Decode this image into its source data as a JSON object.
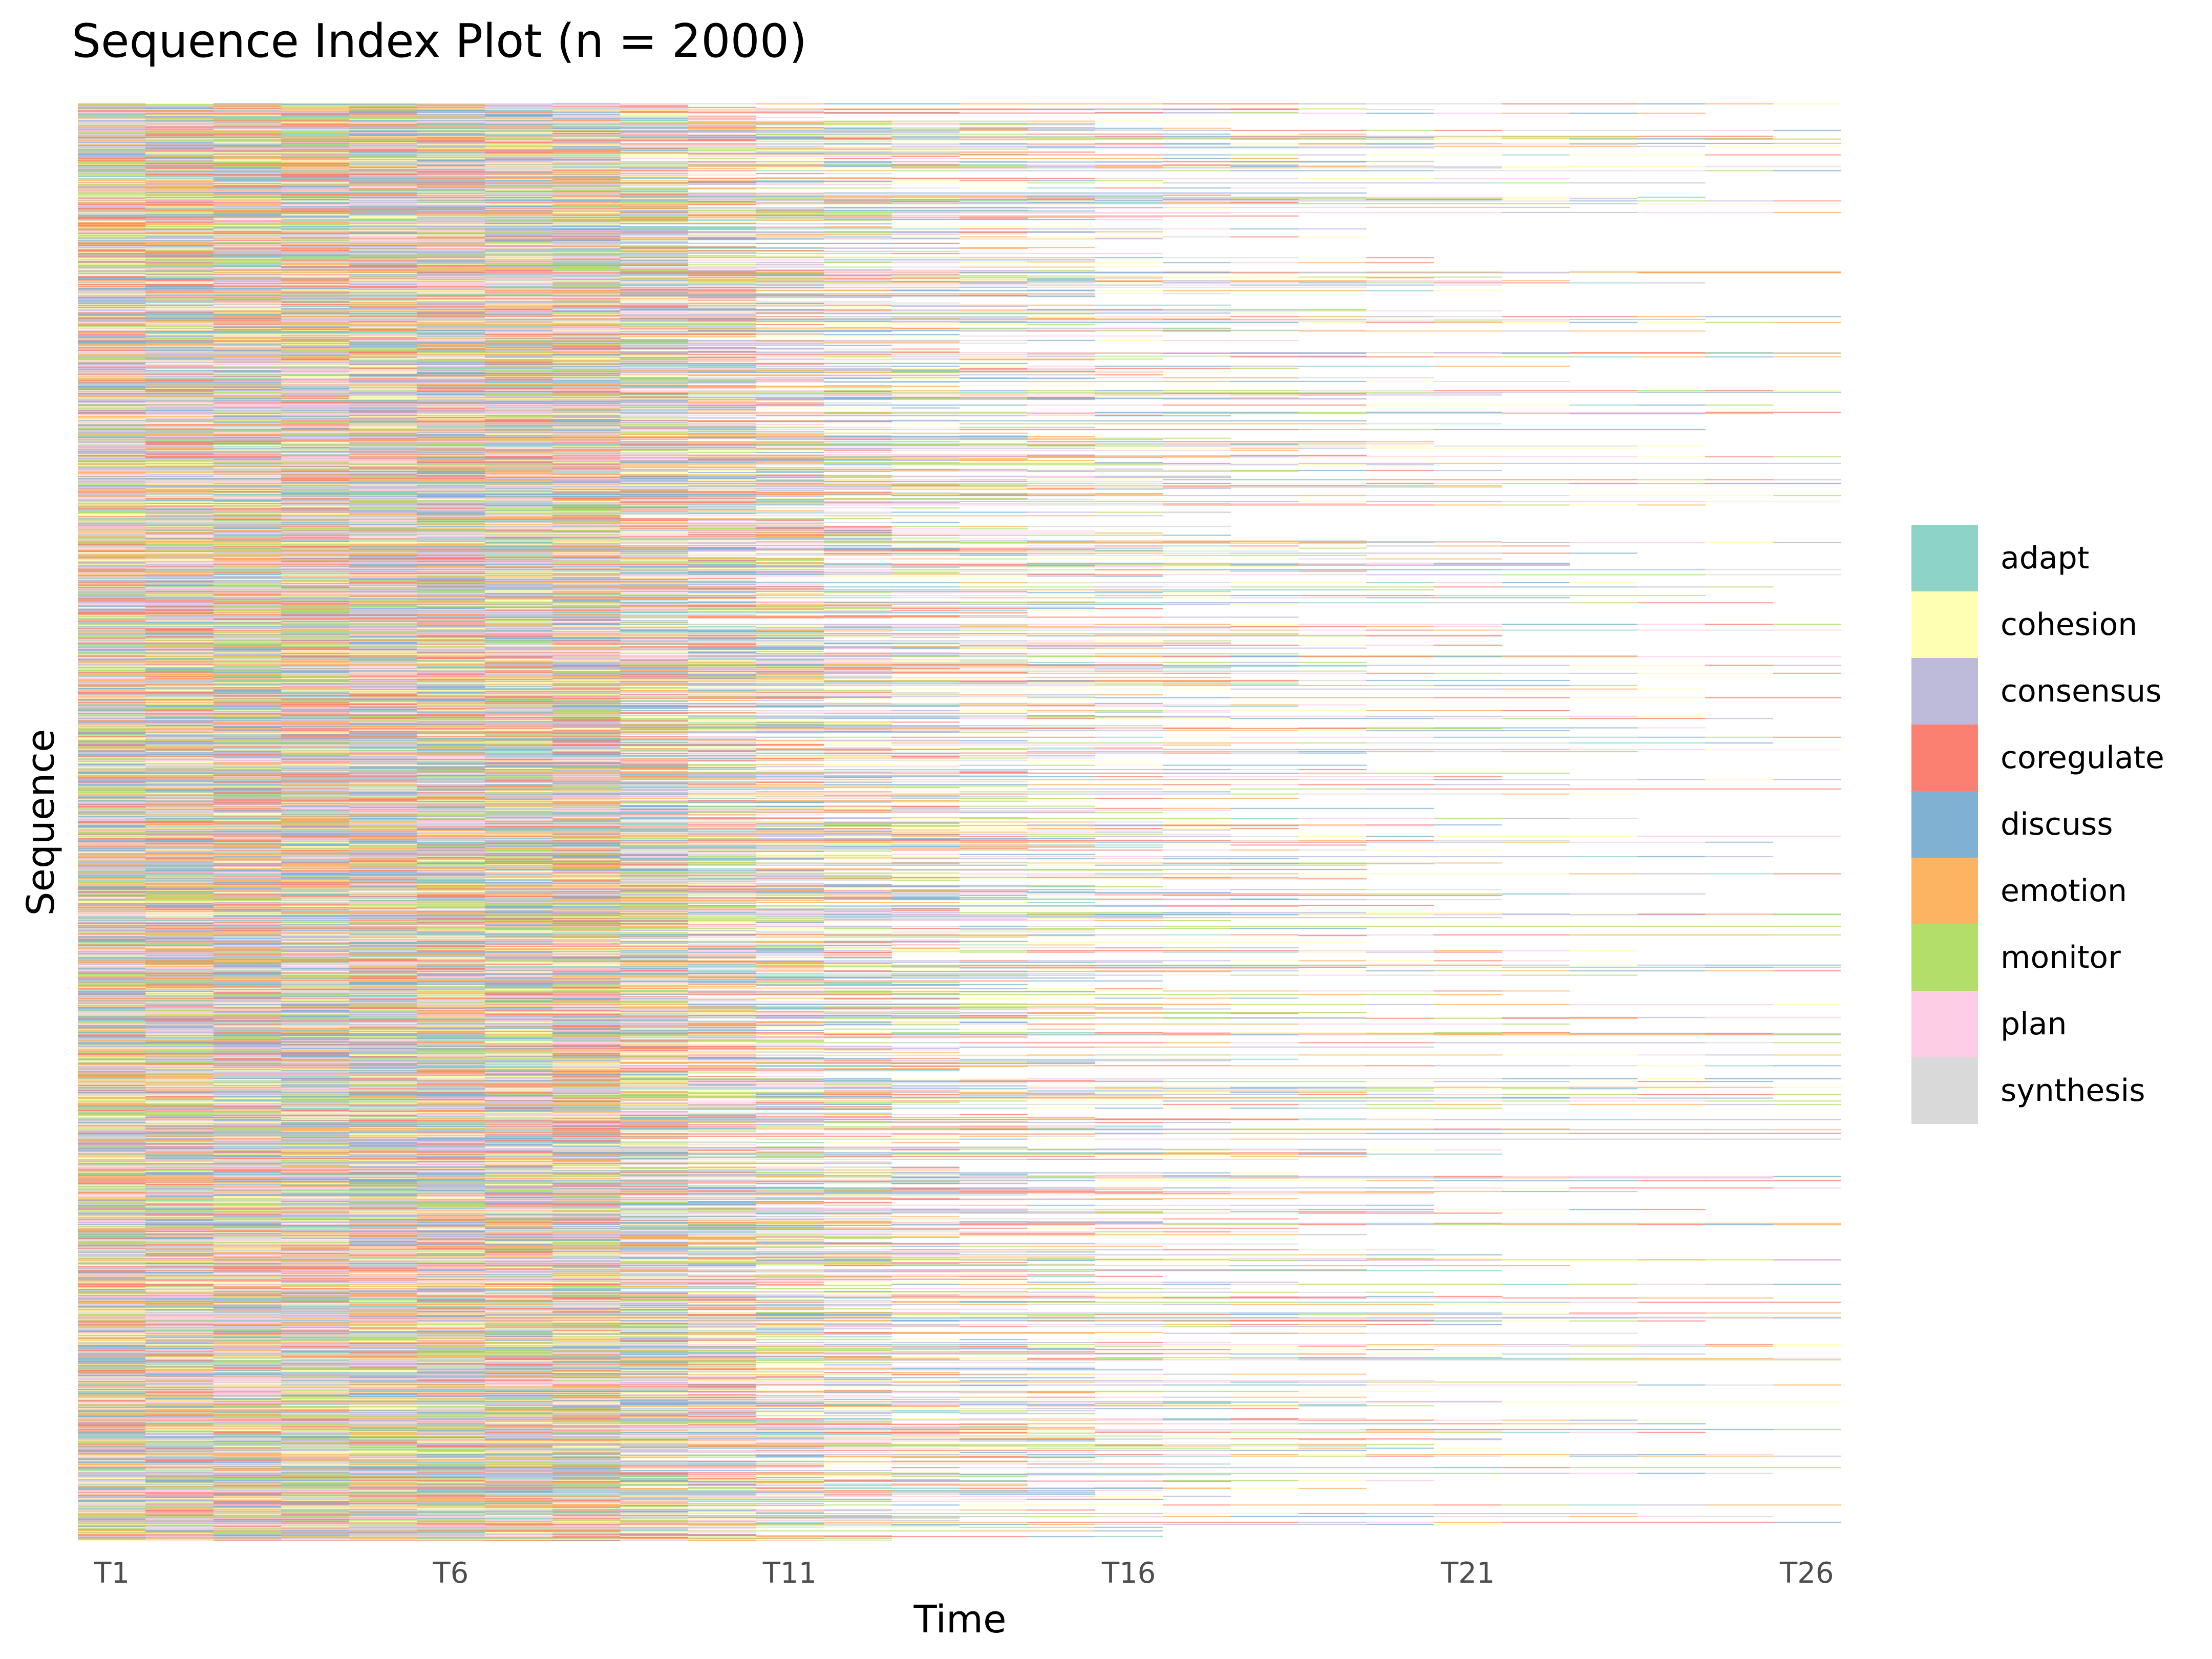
{
  "chart_data": {
    "type": "heatmap",
    "subtype": "sequence index plot",
    "title": "Sequence Index Plot (n = 2000)",
    "xlabel": "Time",
    "ylabel": "Sequence",
    "n_sequences": 2000,
    "time_points": [
      "T1",
      "T2",
      "T3",
      "T4",
      "T5",
      "T6",
      "T7",
      "T8",
      "T9",
      "T10",
      "T11",
      "T12",
      "T13",
      "T14",
      "T15",
      "T16",
      "T17",
      "T18",
      "T19",
      "T20",
      "T21",
      "T22",
      "T23",
      "T24",
      "T25",
      "T26"
    ],
    "x_tick_labels": [
      "T1",
      "T6",
      "T11",
      "T16",
      "T21",
      "T26"
    ],
    "grid": false,
    "legend_position": "right",
    "states": [
      {
        "name": "adapt",
        "color": "#8DD3C7"
      },
      {
        "name": "cohesion",
        "color": "#FFFFB3"
      },
      {
        "name": "consensus",
        "color": "#BEBADA"
      },
      {
        "name": "coregulate",
        "color": "#FB8072"
      },
      {
        "name": "discuss",
        "color": "#80B1D3"
      },
      {
        "name": "emotion",
        "color": "#FDB462"
      },
      {
        "name": "monitor",
        "color": "#B3DE69"
      },
      {
        "name": "plan",
        "color": "#FCCDE5"
      },
      {
        "name": "synthesis",
        "color": "#D9D9D9"
      }
    ]
  }
}
